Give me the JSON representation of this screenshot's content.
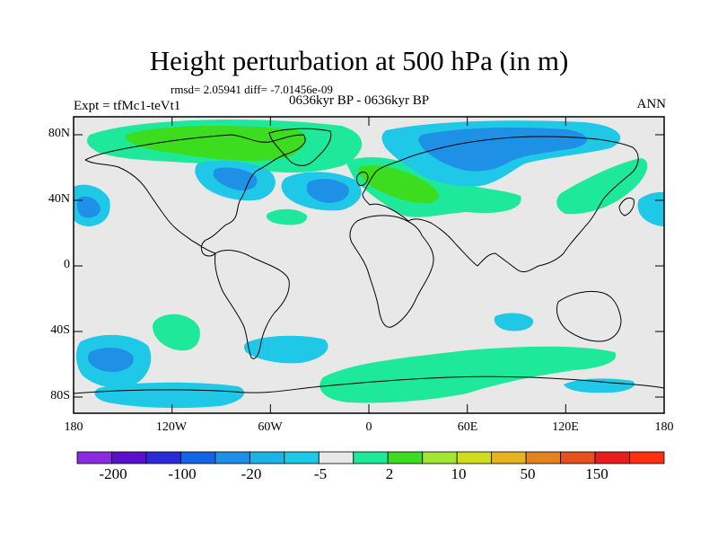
{
  "title": "Height perturbation at 500 hPa (in m)",
  "stats": "rmsd= 2.05941 diff= -7.01456e-09",
  "expt": "Expt = tfMc1-teVt1",
  "period": "0636kyr BP - 0636kyr BP",
  "season": "ANN",
  "map": {
    "projection": "cylindrical-equidistant",
    "lon_range": [
      -180,
      180
    ],
    "lat_range": [
      -90,
      90
    ],
    "y_ticks": [
      "80N",
      "40N",
      "0",
      "40S",
      "80S"
    ],
    "x_ticks": [
      "180",
      "120W",
      "60W",
      "0",
      "60E",
      "120E",
      "180"
    ]
  },
  "colorbar": {
    "colors": [
      "#8a2be2",
      "#5a10cc",
      "#2a2ad8",
      "#1464e6",
      "#1e90e6",
      "#1ab4e6",
      "#20c8e8",
      "#e8e8e8",
      "#1ee89a",
      "#3cdc1e",
      "#a0e632",
      "#d2dc1e",
      "#e6b41e",
      "#e6821e",
      "#e6501e",
      "#e61e1e",
      "#ff3010"
    ],
    "labels": [
      "-200",
      "-100",
      "-20",
      "-5",
      "2",
      "10",
      "50",
      "150"
    ]
  }
}
